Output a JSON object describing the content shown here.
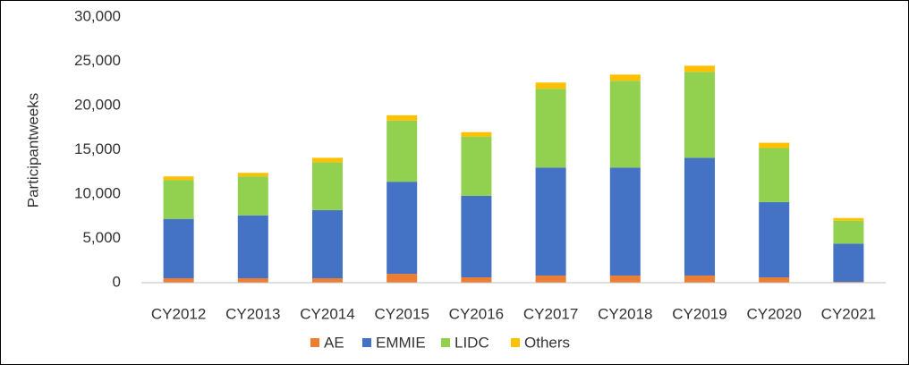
{
  "chart_data": {
    "type": "stacked_bar",
    "y_label": "Participantweeks",
    "categories": [
      "CY2012",
      "CY2013",
      "CY2014",
      "CY2015",
      "CY2016",
      "CY2017",
      "CY2018",
      "CY2019",
      "CY2020",
      "CY2021"
    ],
    "series": [
      {
        "name": "AE",
        "color": "#ed7d31",
        "values": [
          500,
          500,
          500,
          1000,
          600,
          800,
          800,
          800,
          600,
          100
        ]
      },
      {
        "name": "EMMIE",
        "color": "#4472c4",
        "values": [
          6700,
          7100,
          7700,
          10400,
          9200,
          12200,
          12200,
          13300,
          8500,
          4300
        ]
      },
      {
        "name": "LIDC",
        "color": "#92d050",
        "values": [
          4400,
          4400,
          5400,
          6900,
          6700,
          8900,
          9800,
          9700,
          6100,
          2600
        ]
      },
      {
        "name": "Others",
        "color": "#ffc000",
        "values": [
          400,
          400,
          500,
          600,
          500,
          700,
          700,
          700,
          600,
          300
        ]
      }
    ],
    "ylim": [
      0,
      30000
    ],
    "yticks": [
      0,
      {
        "value": 5000,
        "label": "5,000"
      },
      {
        "value": 10000,
        "label": "10,000"
      },
      {
        "value": 15000,
        "label": "15,000"
      },
      {
        "value": 20000,
        "label": "20,000"
      },
      {
        "value": 25000,
        "label": "25,000"
      },
      {
        "value": 30000,
        "label": "30,000"
      }
    ],
    "grid": false,
    "legend": "bottom"
  }
}
